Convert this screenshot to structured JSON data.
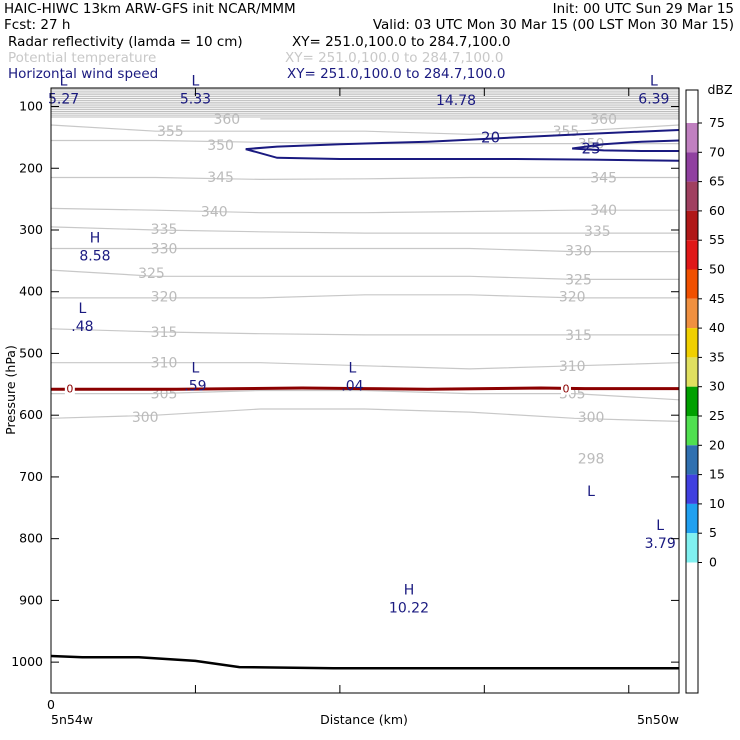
{
  "header": {
    "line1_left": "HAIC-HIWC 13km ARW-GFS init   NCAR/MMM",
    "line1_right": "Init: 00 UTC Sun 29 Mar 15",
    "line2_left": "Fcst:    27 h",
    "line2_right": "Valid: 03 UTC Mon 30 Mar 15 (00 LST Mon 30 Mar 15)",
    "fields": [
      {
        "name": "Radar reflectivity (lamda = 10 cm)",
        "xy": "XY= 251.0,100.0 to 284.7,100.0",
        "color": "#000000"
      },
      {
        "name": "Potential temperature",
        "xy": "XY= 251.0,100.0 to 284.7,100.0",
        "color": "#c8c8c8"
      },
      {
        "name": "Horizontal wind speed",
        "xy": "XY= 251.0,100.0 to 284.7,100.0",
        "color": "#1a1a80"
      }
    ]
  },
  "chart_data": {
    "type": "cross-section",
    "ylabel": "Pressure (hPa)",
    "xlabel": "Distance (km)",
    "x_tick_label": "0",
    "x_left_label": "5n54w",
    "x_right_label": "5n50w",
    "ylim": [
      1050,
      70
    ],
    "y_ticks": [
      100,
      200,
      300,
      400,
      500,
      600,
      700,
      800,
      900,
      1000
    ],
    "grid": false,
    "theta_contours": [
      {
        "label": "360",
        "values": [
          null,
          null,
          120,
          120,
          120,
          120,
          120
        ]
      },
      {
        "label": "355",
        "values": [
          130,
          140,
          140,
          140,
          145,
          140,
          130
        ]
      },
      {
        "label": "350",
        "values": [
          155,
          155,
          158,
          160,
          160,
          160,
          160
        ]
      },
      {
        "label": "345",
        "values": [
          215,
          215,
          218,
          217,
          215,
          215,
          215
        ]
      },
      {
        "label": "340",
        "values": [
          265,
          268,
          272,
          272,
          270,
          268,
          268
        ]
      },
      {
        "label": "335",
        "values": [
          295,
          300,
          303,
          305,
          305,
          305,
          305
        ]
      },
      {
        "label": "330",
        "values": [
          330,
          330,
          330,
          330,
          330,
          335,
          335
        ]
      },
      {
        "label": "325",
        "values": [
          365,
          375,
          375,
          375,
          375,
          380,
          380
        ]
      },
      {
        "label": "320",
        "values": [
          410,
          410,
          410,
          405,
          405,
          410,
          410
        ]
      },
      {
        "label": "315",
        "values": [
          460,
          465,
          468,
          470,
          470,
          470,
          470
        ]
      },
      {
        "label": "310",
        "values": [
          515,
          515,
          515,
          520,
          525,
          520,
          515
        ]
      },
      {
        "label": "305",
        "values": [
          565,
          565,
          560,
          560,
          565,
          565,
          575
        ]
      },
      {
        "label": "300",
        "values": [
          605,
          600,
          590,
          590,
          595,
          605,
          610
        ]
      }
    ],
    "theta_contour_labels": [
      {
        "text": "360",
        "x": 0.28,
        "p": 120
      },
      {
        "text": "360",
        "x": 0.88,
        "p": 120
      },
      {
        "text": "355",
        "x": 0.19,
        "p": 140
      },
      {
        "text": "355",
        "x": 0.82,
        "p": 140
      },
      {
        "text": "350",
        "x": 0.27,
        "p": 162
      },
      {
        "text": "350",
        "x": 0.86,
        "p": 160
      },
      {
        "text": "345",
        "x": 0.27,
        "p": 214
      },
      {
        "text": "345",
        "x": 0.88,
        "p": 215
      },
      {
        "text": "340",
        "x": 0.26,
        "p": 270
      },
      {
        "text": "340",
        "x": 0.88,
        "p": 268
      },
      {
        "text": "335",
        "x": 0.18,
        "p": 298
      },
      {
        "text": "335",
        "x": 0.87,
        "p": 302
      },
      {
        "text": "330",
        "x": 0.18,
        "p": 330
      },
      {
        "text": "330",
        "x": 0.84,
        "p": 333
      },
      {
        "text": "325",
        "x": 0.16,
        "p": 370
      },
      {
        "text": "325",
        "x": 0.84,
        "p": 380
      },
      {
        "text": "320",
        "x": 0.18,
        "p": 408
      },
      {
        "text": "320",
        "x": 0.83,
        "p": 408
      },
      {
        "text": "315",
        "x": 0.18,
        "p": 465
      },
      {
        "text": "315",
        "x": 0.84,
        "p": 470
      },
      {
        "text": "310",
        "x": 0.18,
        "p": 515
      },
      {
        "text": "310",
        "x": 0.83,
        "p": 520
      },
      {
        "text": "305",
        "x": 0.18,
        "p": 565
      },
      {
        "text": "305",
        "x": 0.83,
        "p": 565
      },
      {
        "text": "300",
        "x": 0.15,
        "p": 603
      },
      {
        "text": "300",
        "x": 0.86,
        "p": 603
      },
      {
        "text": "298",
        "x": 0.86,
        "p": 670
      }
    ],
    "wind_contours": [
      {
        "label": "20",
        "x": [
          0.31,
          0.36,
          0.46,
          0.6,
          0.74,
          0.86,
          1.0
        ],
        "upper_p": [
          169,
          165,
          161,
          157,
          150,
          144,
          138
        ],
        "lower_p": [
          169,
          183,
          185,
          185,
          185,
          186,
          188
        ],
        "label_x": 0.7,
        "label_p": 150
      },
      {
        "label": "25",
        "x": [
          0.83,
          0.88,
          0.94,
          1.0
        ],
        "upper_p": [
          168,
          161,
          157,
          155
        ],
        "lower_p": [
          168,
          171,
          172,
          172
        ],
        "label_x": 0.86,
        "label_p": 168
      }
    ],
    "zero_dbz_line": {
      "label": "0",
      "p": 557,
      "label_x": [
        0.03,
        0.82
      ]
    },
    "terrain": {
      "x": [
        0.0,
        0.05,
        0.14,
        0.23,
        0.3,
        0.45,
        0.6,
        0.75,
        1.0
      ],
      "p": [
        990,
        992,
        992,
        998,
        1008,
        1010,
        1010,
        1010,
        1010
      ]
    },
    "extrema": [
      {
        "kind": "L",
        "value": "5.27",
        "x": 0.02,
        "p": 85
      },
      {
        "kind": "L",
        "value": "5.33",
        "x": 0.23,
        "p": 85
      },
      {
        "kind": "L",
        "value": "6.39",
        "x": 0.96,
        "p": 85
      },
      {
        "kind": "H",
        "value": "8.58",
        "x": 0.07,
        "p": 340
      },
      {
        "kind": "L",
        "value": ".48",
        "x": 0.05,
        "p": 454
      },
      {
        "kind": "L",
        "value": ".59",
        "x": 0.23,
        "p": 550
      },
      {
        "kind": "L",
        "value": ".04",
        "x": 0.48,
        "p": 550
      },
      {
        "kind": "L",
        "value": "3.79",
        "x": 0.97,
        "p": 805
      },
      {
        "kind": "H",
        "value": "10.22",
        "x": 0.57,
        "p": 910
      },
      {
        "kind": "L",
        "value": "",
        "x": 0.86,
        "p": 750
      }
    ],
    "top_label": "14.78",
    "colorbar": {
      "title": "dBZ",
      "ticks": [
        "75",
        "70",
        "65",
        "60",
        "55",
        "50",
        "45",
        "40",
        "35",
        "30",
        "25",
        "20",
        "15",
        "10",
        "5",
        "0"
      ],
      "colors": [
        "#c080c0",
        "#9040a0",
        "#a04060",
        "#b01818",
        "#e01818",
        "#f05000",
        "#f09040",
        "#f0d000",
        "#e0e060",
        "#00a000",
        "#50e050",
        "#3070b0",
        "#4040e0",
        "#20a0f0",
        "#80f0f0",
        "#ffffff"
      ]
    }
  }
}
